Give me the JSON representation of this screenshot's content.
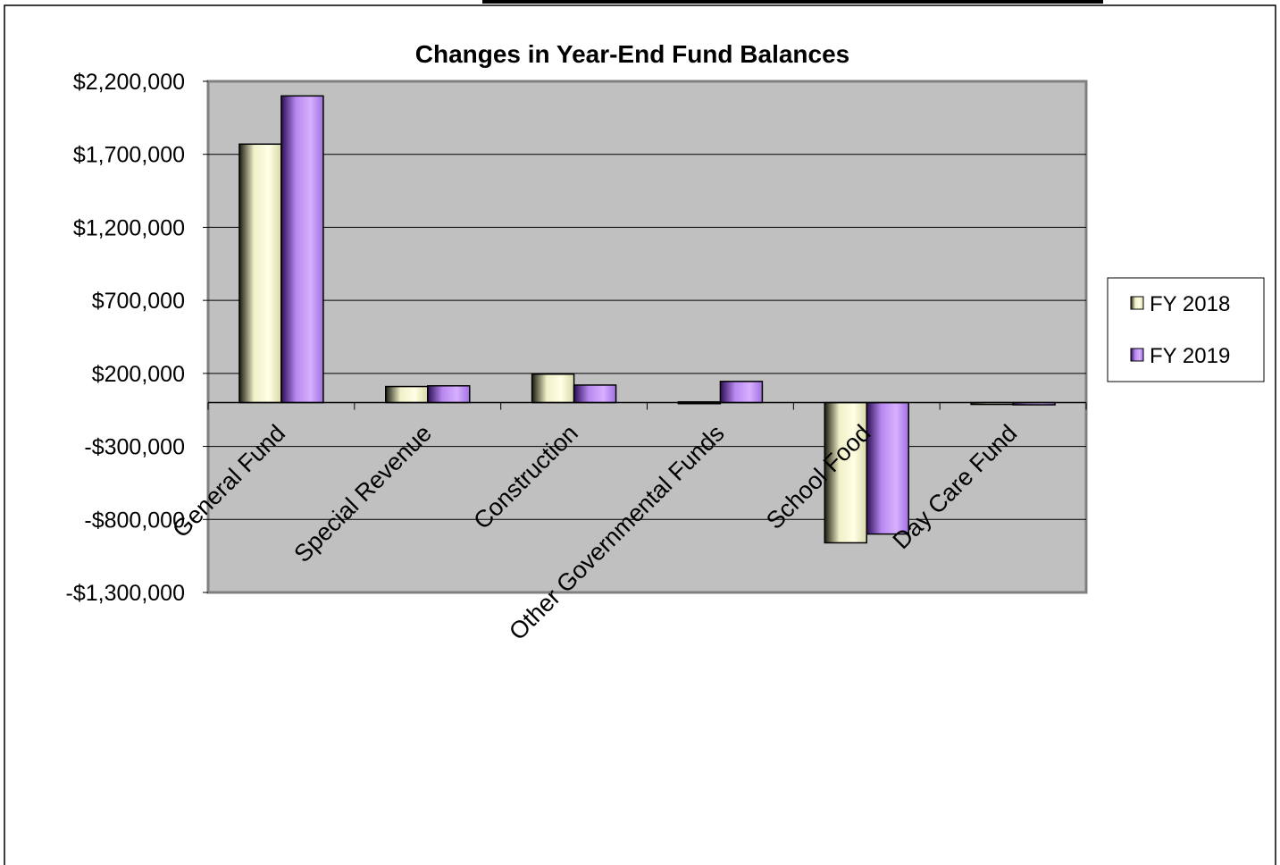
{
  "chart_data": {
    "type": "bar",
    "title": "Changes in Year-End Fund Balances",
    "categories": [
      "General Fund",
      "Special Revenue",
      "Construction",
      "Other Governmental Funds",
      "School Food",
      "Day Care Fund"
    ],
    "series": [
      {
        "name": "FY 2018",
        "values": [
          1770000,
          110000,
          195000,
          5000,
          -960000,
          -5000
        ]
      },
      {
        "name": "FY 2019",
        "values": [
          2100000,
          115000,
          120000,
          145000,
          -900000,
          -15000
        ]
      }
    ],
    "ylim": [
      -1300000,
      2200000
    ],
    "yticks": [
      2200000,
      1700000,
      1200000,
      700000,
      200000,
      -300000,
      -800000,
      -1300000
    ],
    "ytick_labels": [
      "$2,200,000",
      "$1,700,000",
      "$1,200,000",
      "$700,000",
      "$200,000",
      "-$300,000",
      "-$800,000",
      "-$1,300,000"
    ],
    "xlabel": "",
    "ylabel": "",
    "grid": true,
    "legend_position": "right",
    "colors": {
      "plot_background": "#c0c0c0",
      "series_1_light": "#ffffe0",
      "series_1_dark": "#1a1a10",
      "series_2_light": "#cfa3ff",
      "series_2_dark": "#3a1a66"
    }
  }
}
